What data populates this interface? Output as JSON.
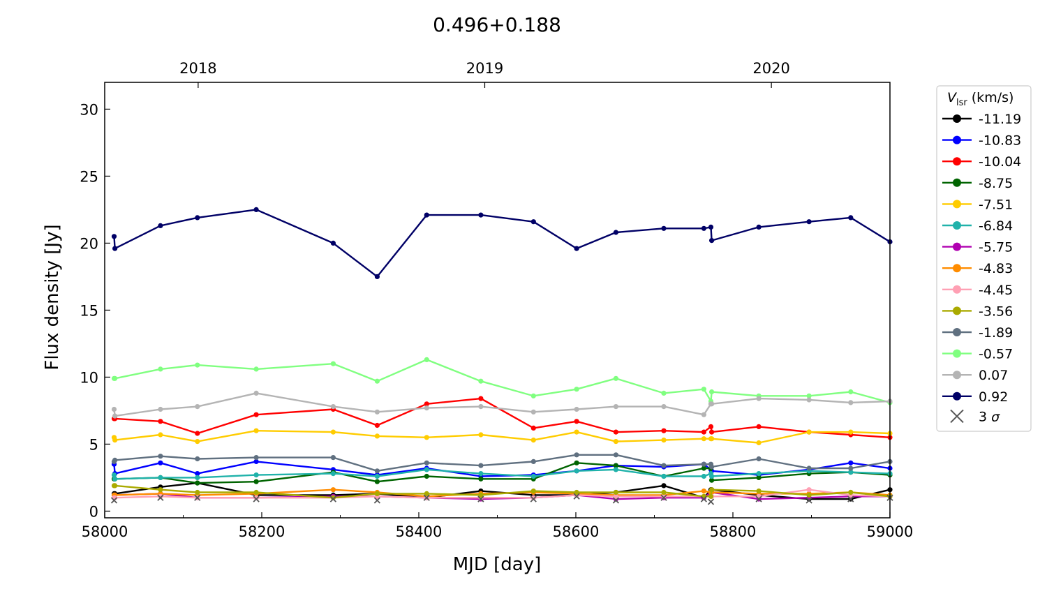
{
  "chart_data": {
    "type": "line",
    "title": "0.496+0.188",
    "xlabel": "MJD [day]",
    "ylabel": "Flux density [Jy]",
    "xlim": [
      58000,
      59000
    ],
    "ylim": [
      -0.5,
      32
    ],
    "x_ticks": [
      58000,
      58200,
      58400,
      58600,
      58800,
      59000
    ],
    "y_ticks": [
      0,
      5,
      10,
      15,
      20,
      25,
      30
    ],
    "top_axis_labels": [
      {
        "label": "2018",
        "x": 58119
      },
      {
        "label": "2019",
        "x": 58484
      },
      {
        "label": "2020",
        "x": 58849
      }
    ],
    "grid": false,
    "legend": {
      "placement": "right-outside",
      "title_main": "V",
      "title_sub": "lsr",
      "title_rest": " (km/s)",
      "limit_label_num": "3 ",
      "limit_label_sym": "σ"
    },
    "epochs": [
      58012,
      58013,
      58071,
      58118,
      58193,
      58291,
      58347,
      58410,
      58479,
      58546,
      58601,
      58651,
      58712,
      58763,
      58772,
      58773,
      58833,
      58897,
      58950,
      59000
    ],
    "series": [
      {
        "name": "-11.19",
        "color": "#000000",
        "values": [
          1.3,
          1.3,
          1.8,
          2.1,
          1.2,
          1.2,
          1.3,
          1.0,
          1.5,
          1.2,
          1.2,
          1.4,
          1.9,
          1.0,
          1.6,
          1.6,
          1.2,
          0.9,
          0.9,
          1.6
        ]
      },
      {
        "name": "-10.83",
        "color": "#0000ff",
        "values": [
          3.5,
          2.8,
          3.6,
          2.8,
          3.7,
          3.1,
          2.7,
          3.2,
          2.6,
          2.7,
          3.0,
          3.4,
          3.3,
          3.5,
          3.1,
          3.0,
          2.7,
          3.1,
          3.6,
          3.2
        ]
      },
      {
        "name": "-10.04",
        "color": "#ff0000",
        "values": [
          6.9,
          6.9,
          6.7,
          5.8,
          7.2,
          7.6,
          6.4,
          8.0,
          8.4,
          6.2,
          6.7,
          5.9,
          6.0,
          5.9,
          6.3,
          5.9,
          6.3,
          5.9,
          5.7,
          5.5
        ]
      },
      {
        "name": "-8.75",
        "color": "#006400",
        "values": [
          2.4,
          2.4,
          2.5,
          2.1,
          2.2,
          2.9,
          2.2,
          2.6,
          2.4,
          2.4,
          3.6,
          3.4,
          2.6,
          3.2,
          3.2,
          2.3,
          2.5,
          2.8,
          2.9,
          2.7
        ]
      },
      {
        "name": "-7.51",
        "color": "#ffcc00",
        "values": [
          5.5,
          5.3,
          5.7,
          5.2,
          6.0,
          5.9,
          5.6,
          5.5,
          5.7,
          5.3,
          5.9,
          5.2,
          5.3,
          5.4,
          5.4,
          5.4,
          5.1,
          5.9,
          5.9,
          5.8
        ]
      },
      {
        "name": "-6.84",
        "color": "#20b2aa",
        "values": [
          2.7,
          2.4,
          2.5,
          2.5,
          2.7,
          2.8,
          2.6,
          3.1,
          2.8,
          2.6,
          3.0,
          3.1,
          2.6,
          2.6,
          2.8,
          2.6,
          2.8,
          3.0,
          2.9,
          2.8
        ]
      },
      {
        "name": "-5.75",
        "color": "#b000b0",
        "values": [
          1.2,
          1.2,
          1.3,
          1.0,
          1.0,
          1.1,
          1.1,
          1.0,
          0.9,
          1.0,
          1.2,
          0.9,
          1.0,
          1.0,
          1.4,
          1.4,
          0.9,
          1.0,
          1.1,
          1.1
        ]
      },
      {
        "name": "-4.83",
        "color": "#ff8c00",
        "values": [
          1.2,
          1.2,
          1.3,
          1.2,
          1.3,
          1.6,
          1.4,
          1.1,
          1.3,
          1.4,
          1.3,
          1.2,
          1.2,
          1.5,
          1.4,
          1.4,
          1.3,
          1.3,
          1.4,
          1.2
        ]
      },
      {
        "name": "-4.45",
        "color": "#ffa0b4",
        "values": [
          1.0,
          1.0,
          1.1,
          1.0,
          1.0,
          1.0,
          1.1,
          1.0,
          1.0,
          1.0,
          1.2,
          1.1,
          1.1,
          1.1,
          1.1,
          1.1,
          1.1,
          1.6,
          1.2,
          1.1
        ]
      },
      {
        "name": "-3.56",
        "color": "#aaaa00",
        "values": [
          1.9,
          1.9,
          1.6,
          1.4,
          1.4,
          1.0,
          1.3,
          1.3,
          1.2,
          1.5,
          1.4,
          1.4,
          1.4,
          1.1,
          1.1,
          1.6,
          1.5,
          1.2,
          1.4,
          1.1
        ]
      },
      {
        "name": "-1.89",
        "color": "#607080",
        "values": [
          3.7,
          3.8,
          4.1,
          3.9,
          4.0,
          4.0,
          3.0,
          3.6,
          3.4,
          3.7,
          4.2,
          4.2,
          3.4,
          3.5,
          3.5,
          3.3,
          3.9,
          3.2,
          3.2,
          3.7
        ]
      },
      {
        "name": "-0.57",
        "color": "#80ff80",
        "values": [
          9.9,
          9.9,
          10.6,
          10.9,
          10.6,
          11.0,
          9.7,
          11.3,
          9.7,
          8.6,
          9.1,
          9.9,
          8.8,
          9.1,
          8.2,
          8.9,
          8.6,
          8.6,
          8.9,
          8.1
        ]
      },
      {
        "name": "0.07",
        "color": "#b4b4b4",
        "values": [
          7.6,
          7.1,
          7.6,
          7.8,
          8.8,
          7.8,
          7.4,
          7.7,
          7.8,
          7.4,
          7.6,
          7.8,
          7.8,
          7.2,
          8.0,
          8.0,
          8.4,
          8.3,
          8.1,
          8.2
        ]
      },
      {
        "name": "0.92",
        "color": "#000066",
        "values": [
          20.5,
          19.6,
          21.3,
          21.9,
          22.5,
          20.0,
          17.5,
          22.1,
          22.1,
          21.6,
          19.6,
          20.8,
          21.1,
          21.1,
          21.2,
          20.2,
          21.2,
          21.6,
          21.9,
          20.1
        ]
      }
    ],
    "upper_limits": {
      "label": "3 σ",
      "color": "#555555",
      "x": [
        58012,
        58071,
        58118,
        58193,
        58291,
        58347,
        58410,
        58479,
        58546,
        58601,
        58651,
        58712,
        58763,
        58772,
        58833,
        58897,
        58950,
        59000
      ],
      "y": [
        0.8,
        1.0,
        1.0,
        0.9,
        0.9,
        0.8,
        1.0,
        0.9,
        0.9,
        1.1,
        0.8,
        1.0,
        0.9,
        0.7,
        0.9,
        0.8,
        0.9,
        1.0
      ]
    }
  }
}
